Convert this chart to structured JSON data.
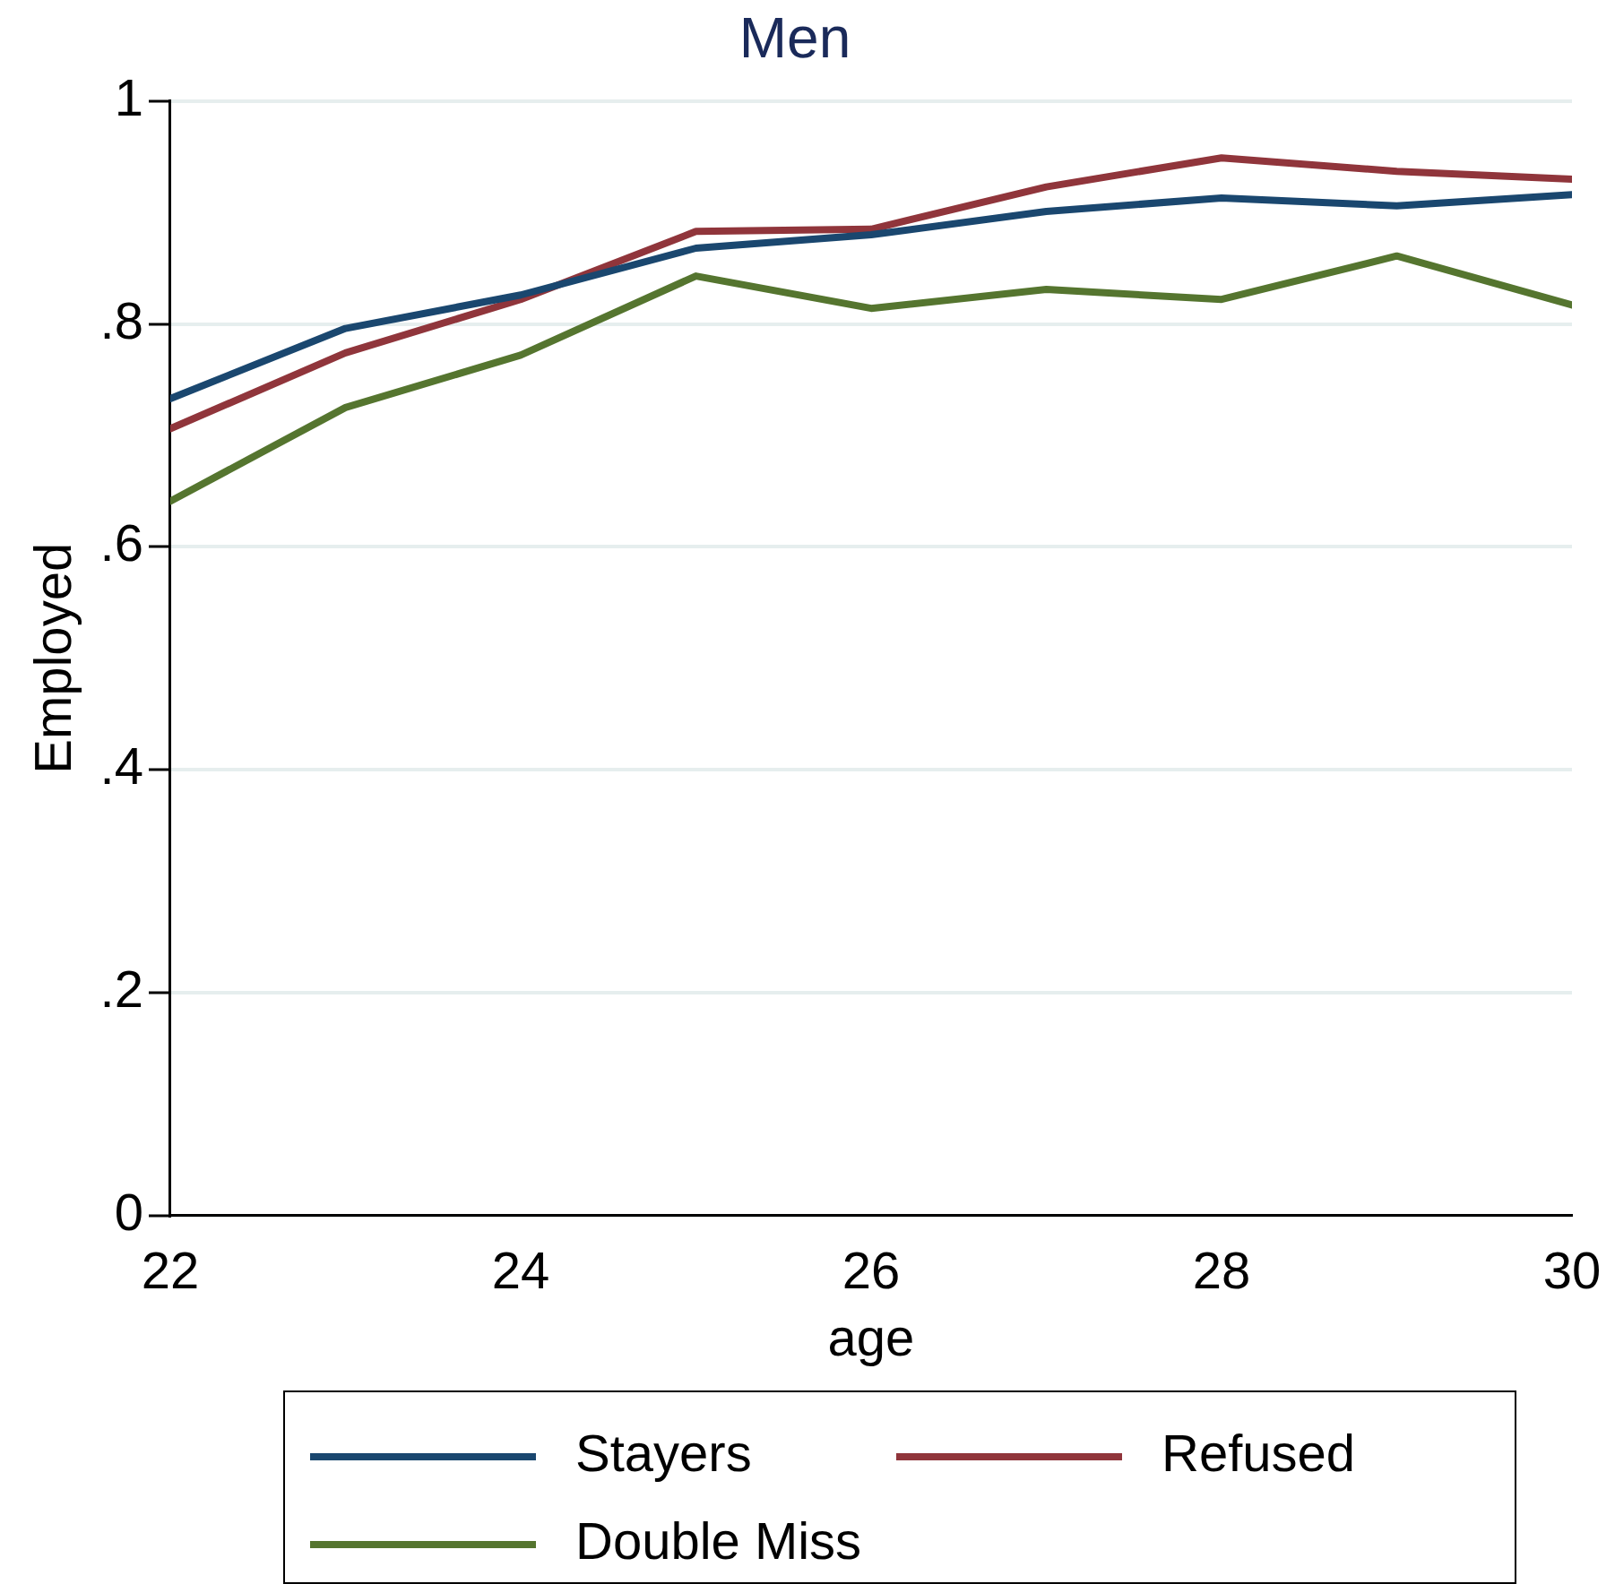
{
  "chart_data": {
    "type": "line",
    "title": "Men",
    "xlabel": "age",
    "ylabel": "Employed",
    "x": [
      22,
      23,
      24,
      25,
      26,
      27,
      28,
      29,
      30
    ],
    "series": [
      {
        "name": "Stayers",
        "color": "#1a476f",
        "values": [
          0.733,
          0.796,
          0.826,
          0.868,
          0.88,
          0.901,
          0.913,
          0.906,
          0.916
        ]
      },
      {
        "name": "Refused",
        "color": "#90353b",
        "values": [
          0.706,
          0.774,
          0.822,
          0.883,
          0.885,
          0.923,
          0.949,
          0.937,
          0.93
        ]
      },
      {
        "name": "Double Miss",
        "color": "#55752f",
        "values": [
          0.641,
          0.725,
          0.772,
          0.843,
          0.814,
          0.831,
          0.822,
          0.861,
          0.817
        ]
      }
    ],
    "xlim": [
      22,
      30
    ],
    "xticks": [
      22,
      24,
      26,
      28,
      30
    ],
    "ylim": [
      0,
      1
    ],
    "yticks": [
      0,
      {
        "value": 0.2,
        "label": ".2"
      },
      {
        "value": 0.4,
        "label": ".4"
      },
      {
        "value": 0.6,
        "label": ".6"
      },
      {
        "value": 0.8,
        "label": ".8"
      },
      1
    ],
    "grid": "y",
    "legend": "bottom",
    "marker": "none",
    "line_style": "solid"
  }
}
